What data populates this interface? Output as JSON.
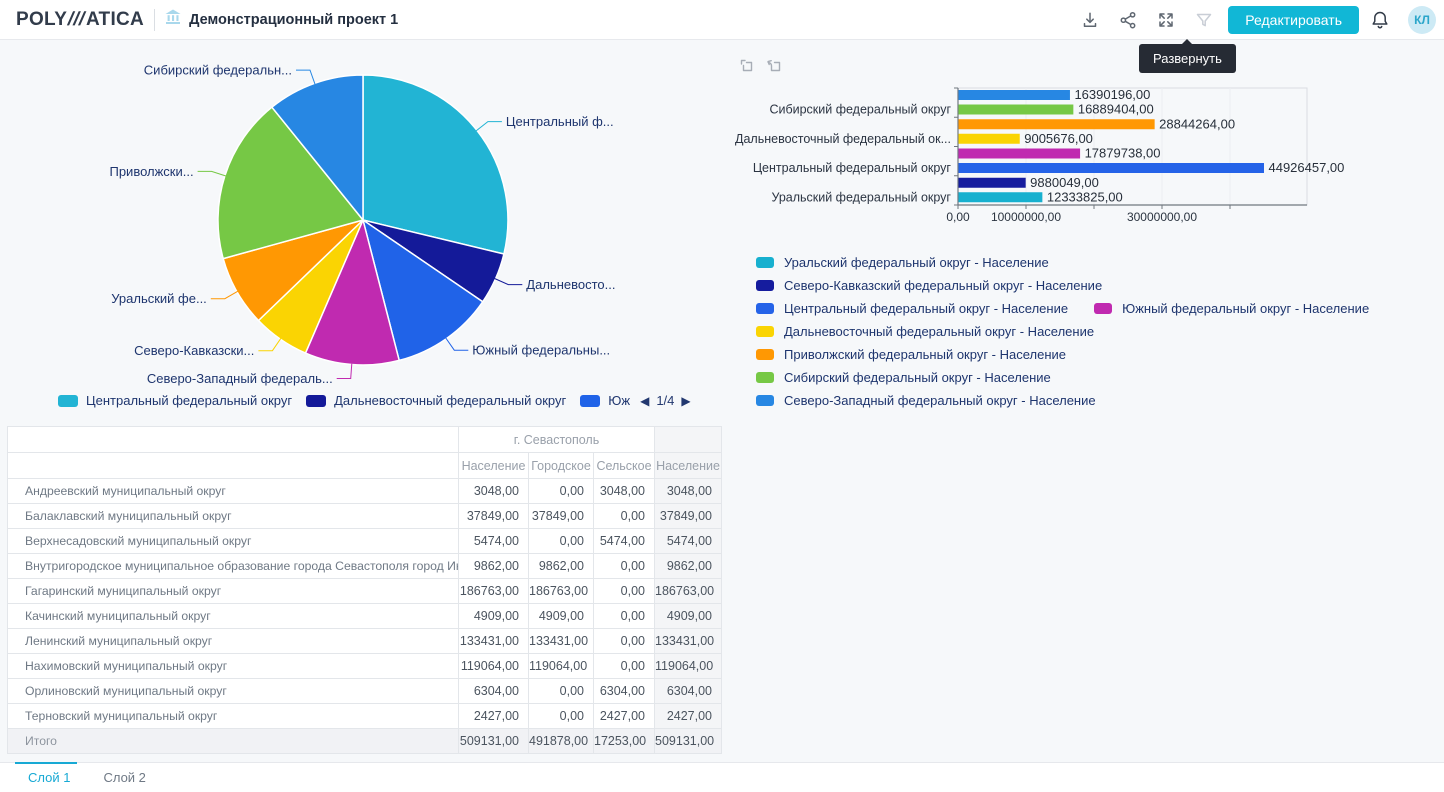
{
  "header": {
    "logo": {
      "poly": "POLY",
      "slashes": "///",
      "atica": "ATICA"
    },
    "project_title": "Демонстрационный проект 1",
    "actions": {
      "edit_label": "Редактировать",
      "avatar_initials": "КЛ"
    },
    "tooltip": "Развернуть"
  },
  "pie_chart": {
    "type": "pie",
    "slices": [
      {
        "name": "Центральный федеральный округ",
        "callout": "Центральный ф...",
        "value": 44926457,
        "color": "#22b4d4"
      },
      {
        "name": "Дальневосточный федеральный округ",
        "callout": "Дальневосто...",
        "value": 9005676,
        "color": "#141a99"
      },
      {
        "name": "Южный федеральный округ",
        "callout": "Южный федеральны...",
        "value": 17879738,
        "color": "#2063e8"
      },
      {
        "name": "Северо-Западный федеральный округ",
        "callout": "Северо-Западный федераль...",
        "value": 16390196,
        "color": "#c02ab0"
      },
      {
        "name": "Северо-Кавказский федеральный округ",
        "callout": "Северо-Кавказски...",
        "value": 9880049,
        "color": "#fad403"
      },
      {
        "name": "Уральский федеральный округ",
        "callout": "Уральский фе...",
        "value": 12333825,
        "color": "#ff9803"
      },
      {
        "name": "Приволжский федеральный округ",
        "callout": "Приволжски...",
        "value": 28844264,
        "color": "#76c845"
      },
      {
        "name": "Сибирский федеральный округ",
        "callout": "Сибирский федеральн...",
        "value": 16889404,
        "color": "#2787e3"
      }
    ],
    "legend": [
      {
        "label": "Центральный федеральный округ",
        "color": "#22b4d4"
      },
      {
        "label": "Дальневосточный федеральный округ",
        "color": "#141a99"
      },
      {
        "label": "Юж",
        "color": "#2063e8"
      }
    ],
    "pagination": "1/4",
    "prev_arrow": "◀",
    "next_arrow": "▶"
  },
  "bar_chart": {
    "type": "bar",
    "orientation": "horizontal",
    "bars": [
      {
        "name": "Северо-Западный федеральный округ",
        "value": 16390196,
        "display": "16390196,00",
        "color": "#2787e3",
        "axis_label": ""
      },
      {
        "name": "Сибирский федеральный округ",
        "value": 16889404,
        "display": "16889404,00",
        "color": "#76c845",
        "axis_label": "Сибирский федеральный округ"
      },
      {
        "name": "Приволжский федеральный округ",
        "value": 28844264,
        "display": "28844264,00",
        "color": "#ff9803",
        "axis_label": ""
      },
      {
        "name": "Дальневосточный федеральный округ",
        "value": 9005676,
        "display": "9005676,00",
        "color": "#fad403",
        "axis_label": "Дальневосточный федеральный ок..."
      },
      {
        "name": "Южный федеральный округ",
        "value": 17879738,
        "display": "17879738,00",
        "color": "#c02ab0",
        "axis_label": ""
      },
      {
        "name": "Центральный федеральный округ",
        "value": 44926457,
        "display": "44926457,00",
        "color": "#2563e8",
        "axis_label": "Центральный федеральный округ"
      },
      {
        "name": "Северо-Кавказский федеральный округ",
        "value": 9880049,
        "display": "9880049,00",
        "color": "#151c9e",
        "axis_label": ""
      },
      {
        "name": "Уральский федеральный округ",
        "value": 12333825,
        "display": "12333825,00",
        "color": "#17b0cf",
        "axis_label": "Уральский федеральный округ"
      }
    ],
    "x_axis": {
      "max": 51300000,
      "ticks": [
        {
          "value": 0,
          "label": "0,00"
        },
        {
          "value": 10000000,
          "label": "10000000,00"
        },
        {
          "value": 20000000,
          "label": ""
        },
        {
          "value": 30000000,
          "label": "30000000,00"
        },
        {
          "value": 40000000,
          "label": ""
        }
      ]
    },
    "legend_rows": [
      [
        {
          "label": "Уральский федеральный округ - Население",
          "color": "#17b0cf"
        }
      ],
      [
        {
          "label": "Северо-Кавказский федеральный округ - Население",
          "color": "#151c9e"
        }
      ],
      [
        {
          "label": "Центральный федеральный округ - Население",
          "color": "#2563e8"
        },
        {
          "label": "Южный федеральный округ - Население",
          "color": "#c02ab0"
        }
      ],
      [
        {
          "label": "Дальневосточный федеральный округ - Население",
          "color": "#fad403"
        }
      ],
      [
        {
          "label": "Приволжский федеральный округ - Население",
          "color": "#ff9803"
        }
      ],
      [
        {
          "label": "Сибирский федеральный округ - Население",
          "color": "#76c845"
        }
      ],
      [
        {
          "label": "Северо-Западный федеральный округ - Население",
          "color": "#2787e3"
        }
      ]
    ]
  },
  "table": {
    "group_header": "г. Севастополь",
    "columns": [
      "Население",
      "Городское",
      "Сельское",
      "Население"
    ],
    "rows": [
      {
        "label": "Андреевский муниципальный округ",
        "values": [
          "3048,00",
          "0,00",
          "3048,00",
          "3048,00"
        ]
      },
      {
        "label": "Балаклавский муниципальный округ",
        "values": [
          "37849,00",
          "37849,00",
          "0,00",
          "37849,00"
        ]
      },
      {
        "label": "Верхнесадовский муниципальный округ",
        "values": [
          "5474,00",
          "0,00",
          "5474,00",
          "5474,00"
        ]
      },
      {
        "label": "Внутригородское муниципальное образование города Севастополя город Инкерман",
        "values": [
          "9862,00",
          "9862,00",
          "0,00",
          "9862,00"
        ]
      },
      {
        "label": "Гагаринский муниципальный округ",
        "values": [
          "186763,00",
          "186763,00",
          "0,00",
          "186763,00"
        ]
      },
      {
        "label": "Качинский муниципальный округ",
        "values": [
          "4909,00",
          "4909,00",
          "0,00",
          "4909,00"
        ]
      },
      {
        "label": "Ленинский муниципальный округ",
        "values": [
          "133431,00",
          "133431,00",
          "0,00",
          "133431,00"
        ]
      },
      {
        "label": "Нахимовский муниципальный округ",
        "values": [
          "119064,00",
          "119064,00",
          "0,00",
          "119064,00"
        ]
      },
      {
        "label": "Орлиновский муниципальный округ",
        "values": [
          "6304,00",
          "0,00",
          "6304,00",
          "6304,00"
        ]
      },
      {
        "label": "Терновский муниципальный округ",
        "values": [
          "2427,00",
          "0,00",
          "2427,00",
          "2427,00"
        ]
      }
    ],
    "total": {
      "label": "Итого",
      "values": [
        "509131,00",
        "491878,00",
        "17253,00",
        "509131,00"
      ]
    }
  },
  "footer_tabs": {
    "tabs": [
      {
        "label": "Слой 1",
        "active": true
      },
      {
        "label": "Слой 2",
        "active": false
      }
    ]
  }
}
